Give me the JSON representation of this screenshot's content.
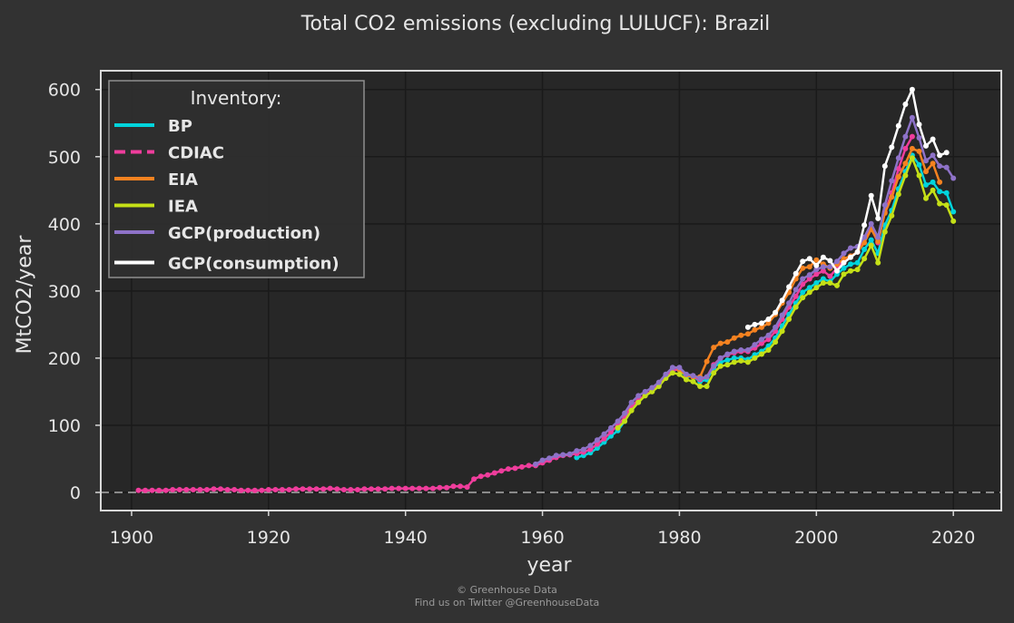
{
  "chart_data": {
    "type": "line",
    "title": "Total CO2 emissions (excluding LULUCF): Brazil",
    "xlabel": "year",
    "ylabel": "MtCO2/year",
    "xlim": [
      1895.5,
      2027
    ],
    "ylim": [
      -27,
      628
    ],
    "xticks": [
      1900,
      1920,
      1940,
      1960,
      1980,
      2000,
      2020
    ],
    "yticks": [
      0,
      100,
      200,
      300,
      400,
      500,
      600
    ],
    "grid": true,
    "zero_line": "dashed",
    "legend": {
      "title": "Inventory:",
      "placement": "top-left"
    },
    "series": [
      {
        "name": "BP",
        "color": "#00d4dc",
        "dash": "solid",
        "x": [
          1965,
          1966,
          1967,
          1968,
          1969,
          1970,
          1971,
          1972,
          1973,
          1974,
          1975,
          1976,
          1977,
          1978,
          1979,
          1980,
          1981,
          1982,
          1983,
          1984,
          1985,
          1986,
          1987,
          1988,
          1989,
          1990,
          1991,
          1992,
          1993,
          1994,
          1995,
          1996,
          1997,
          1998,
          1999,
          2000,
          2001,
          2002,
          2003,
          2004,
          2005,
          2006,
          2007,
          2008,
          2009,
          2010,
          2011,
          2012,
          2013,
          2014,
          2015,
          2016,
          2017,
          2018,
          2019,
          2020
        ],
        "y": [
          52,
          55,
          59,
          66,
          75,
          84,
          92,
          106,
          124,
          136,
          145,
          151,
          160,
          174,
          182,
          183,
          172,
          173,
          165,
          168,
          186,
          194,
          197,
          200,
          200,
          198,
          205,
          210,
          218,
          230,
          248,
          265,
          282,
          298,
          305,
          312,
          318,
          314,
          325,
          334,
          340,
          342,
          362,
          376,
          356,
          398,
          420,
          452,
          478,
          502,
          488,
          458,
          462,
          448,
          446,
          418
        ]
      },
      {
        "name": "CDIAC",
        "color": "#ef3d9c",
        "dash": "dashed",
        "x": [
          1901,
          1902,
          1903,
          1904,
          1905,
          1906,
          1907,
          1908,
          1909,
          1910,
          1911,
          1912,
          1913,
          1914,
          1915,
          1916,
          1917,
          1918,
          1919,
          1920,
          1921,
          1922,
          1923,
          1924,
          1925,
          1926,
          1927,
          1928,
          1929,
          1930,
          1931,
          1932,
          1933,
          1934,
          1935,
          1936,
          1937,
          1938,
          1939,
          1940,
          1941,
          1942,
          1943,
          1944,
          1945,
          1946,
          1947,
          1948,
          1949,
          1950,
          1951,
          1952,
          1953,
          1954,
          1955,
          1956,
          1957,
          1958,
          1959,
          1960,
          1961,
          1962,
          1963,
          1964,
          1965,
          1966,
          1967,
          1968,
          1969,
          1970,
          1971,
          1972,
          1973,
          1974,
          1975,
          1976,
          1977,
          1978,
          1979,
          1980,
          1981,
          1982,
          1983,
          1984,
          1985,
          1986,
          1987,
          1988,
          1989,
          1990,
          1991,
          1992,
          1993,
          1994,
          1995,
          1996,
          1997,
          1998,
          1999,
          2000,
          2001,
          2002,
          2003,
          2004,
          2005,
          2006,
          2007,
          2008,
          2009,
          2010,
          2011,
          2012,
          2013,
          2014
        ],
        "y": [
          3,
          3,
          3,
          3,
          3,
          4,
          4,
          4,
          4,
          4,
          4,
          5,
          5,
          4,
          4,
          3,
          3,
          3,
          3,
          4,
          4,
          4,
          4,
          5,
          5,
          5,
          5,
          5,
          6,
          5,
          4,
          4,
          4,
          5,
          5,
          5,
          5,
          6,
          6,
          6,
          6,
          6,
          6,
          6,
          7,
          7,
          9,
          9,
          8,
          20,
          24,
          26,
          29,
          32,
          35,
          36,
          38,
          40,
          40,
          44,
          48,
          52,
          55,
          56,
          58,
          60,
          64,
          72,
          80,
          90,
          100,
          112,
          128,
          138,
          145,
          152,
          160,
          172,
          182,
          183,
          175,
          172,
          168,
          172,
          190,
          200,
          205,
          208,
          210,
          210,
          215,
          222,
          228,
          240,
          258,
          276,
          292,
          310,
          318,
          325,
          330,
          322,
          334,
          345,
          352,
          358,
          378,
          394,
          372,
          418,
          446,
          482,
          512,
          530
        ]
      },
      {
        "name": "EIA",
        "color": "#f58220",
        "dash": "solid",
        "x": [
          1980,
          1981,
          1982,
          1983,
          1984,
          1985,
          1986,
          1987,
          1988,
          1989,
          1990,
          1991,
          1992,
          1993,
          1994,
          1995,
          1996,
          1997,
          1998,
          1999,
          2000,
          2001,
          2002,
          2003,
          2004,
          2005,
          2006,
          2007,
          2008,
          2009,
          2010,
          2011,
          2012,
          2013,
          2014,
          2015,
          2016,
          2017,
          2018
        ],
        "y": [
          183,
          174,
          172,
          172,
          195,
          216,
          222,
          224,
          230,
          234,
          236,
          242,
          246,
          252,
          265,
          282,
          298,
          318,
          334,
          336,
          346,
          340,
          334,
          340,
          348,
          352,
          358,
          372,
          392,
          374,
          416,
          440,
          470,
          490,
          512,
          508,
          478,
          490,
          462
        ]
      },
      {
        "name": "IEA",
        "color": "#c5e017",
        "dash": "solid",
        "x": [
          1971,
          1972,
          1973,
          1974,
          1975,
          1976,
          1977,
          1978,
          1979,
          1980,
          1981,
          1982,
          1983,
          1984,
          1985,
          1986,
          1987,
          1988,
          1989,
          1990,
          1991,
          1992,
          1993,
          1994,
          1995,
          1996,
          1997,
          1998,
          1999,
          2000,
          2001,
          2002,
          2003,
          2004,
          2005,
          2006,
          2007,
          2008,
          2009,
          2010,
          2011,
          2012,
          2013,
          2014,
          2015,
          2016,
          2017,
          2018,
          2019,
          2020
        ],
        "y": [
          96,
          106,
          122,
          134,
          144,
          150,
          158,
          170,
          178,
          176,
          168,
          165,
          158,
          158,
          178,
          188,
          190,
          194,
          196,
          194,
          200,
          206,
          212,
          224,
          240,
          258,
          276,
          290,
          298,
          305,
          312,
          312,
          308,
          325,
          330,
          332,
          348,
          368,
          342,
          388,
          412,
          444,
          472,
          498,
          472,
          438,
          450,
          430,
          428,
          404
        ]
      },
      {
        "name": "GCP(production)",
        "color": "#8e72c8",
        "dash": "solid",
        "x": [
          1959,
          1960,
          1961,
          1962,
          1963,
          1964,
          1965,
          1966,
          1967,
          1968,
          1969,
          1970,
          1971,
          1972,
          1973,
          1974,
          1975,
          1976,
          1977,
          1978,
          1979,
          1980,
          1981,
          1982,
          1983,
          1984,
          1985,
          1986,
          1987,
          1988,
          1989,
          1990,
          1991,
          1992,
          1993,
          1994,
          1995,
          1996,
          1997,
          1998,
          1999,
          2000,
          2001,
          2002,
          2003,
          2004,
          2005,
          2006,
          2007,
          2008,
          2009,
          2010,
          2011,
          2012,
          2013,
          2014,
          2015,
          2016,
          2017,
          2018,
          2019,
          2020
        ],
        "y": [
          42,
          48,
          51,
          55,
          56,
          57,
          62,
          64,
          70,
          78,
          87,
          96,
          106,
          118,
          134,
          144,
          150,
          156,
          164,
          176,
          186,
          186,
          176,
          174,
          170,
          172,
          188,
          200,
          206,
          210,
          212,
          212,
          220,
          228,
          234,
          246,
          264,
          282,
          302,
          318,
          324,
          332,
          336,
          336,
          344,
          356,
          364,
          366,
          380,
          400,
          380,
          428,
          464,
          498,
          530,
          558,
          528,
          494,
          502,
          486,
          484,
          468
        ]
      },
      {
        "name": "GCP(consumption)",
        "color": "#ffffff",
        "dash": "solid",
        "x": [
          1990,
          1991,
          1992,
          1993,
          1994,
          1995,
          1996,
          1997,
          1998,
          1999,
          2000,
          2001,
          2002,
          2003,
          2004,
          2005,
          2006,
          2007,
          2008,
          2009,
          2010,
          2011,
          2012,
          2013,
          2014,
          2015,
          2016,
          2017,
          2018,
          2019
        ],
        "y": [
          246,
          250,
          252,
          258,
          268,
          286,
          306,
          326,
          344,
          348,
          338,
          350,
          345,
          330,
          342,
          350,
          358,
          398,
          442,
          408,
          486,
          514,
          546,
          578,
          600,
          548,
          516,
          526,
          502,
          506
        ]
      }
    ]
  },
  "credit": {
    "line1": "© Greenhouse Data",
    "line2": "Find us on Twitter @GreenhouseData"
  }
}
